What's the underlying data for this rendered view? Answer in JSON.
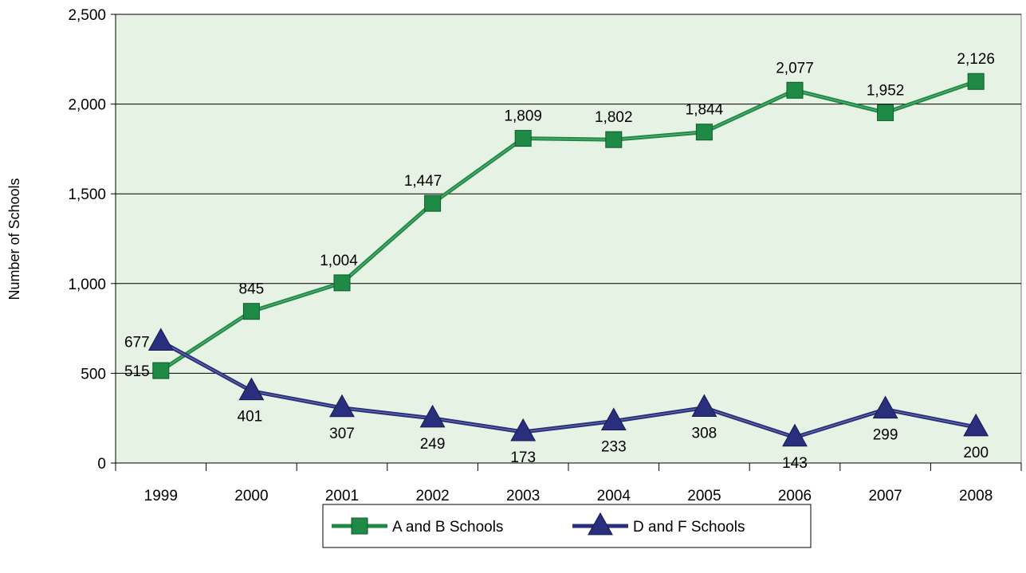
{
  "chart_data": {
    "type": "line",
    "title": "",
    "xlabel": "",
    "ylabel": "Number of Schools",
    "categories": [
      "1999",
      "2000",
      "2001",
      "2002",
      "2003",
      "2004",
      "2005",
      "2006",
      "2007",
      "2008"
    ],
    "ylim": [
      0,
      2500
    ],
    "yticks": [
      0,
      500,
      1000,
      1500,
      2000,
      2500
    ],
    "ytick_labels": [
      "0",
      "500",
      "1,000",
      "1,500",
      "2,000",
      "2,500"
    ],
    "grid": true,
    "legend_position": "bottom",
    "series": [
      {
        "name": "A and B Schools",
        "values": [
          515,
          845,
          1004,
          1447,
          1809,
          1802,
          1844,
          2077,
          1952,
          2126
        ],
        "labels": [
          "515",
          "845",
          "1,004",
          "1,447",
          "1,809",
          "1,802",
          "1,844",
          "2,077",
          "1,952",
          "2,126"
        ],
        "marker": "square",
        "color": "#1e8a45"
      },
      {
        "name": "D and F Schools",
        "values": [
          677,
          401,
          307,
          249,
          173,
          233,
          308,
          143,
          299,
          200
        ],
        "labels": [
          "677",
          "401",
          "307",
          "249",
          "173",
          "233",
          "308",
          "143",
          "299",
          "200"
        ],
        "marker": "triangle",
        "color": "#2a2f7d"
      }
    ],
    "colors": {
      "plot_background": "#e6f2e3",
      "gridline": "#000000"
    }
  }
}
